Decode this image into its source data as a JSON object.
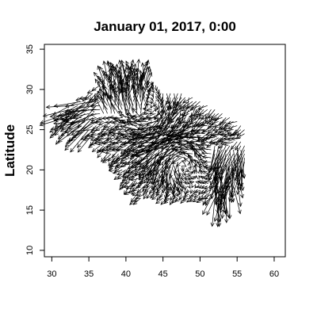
{
  "chart_data": {
    "type": "vector_field",
    "title": "January 01, 2017, 0:00",
    "xlabel": "",
    "ylabel": "Latitude",
    "xlim": [
      29,
      61.5
    ],
    "ylim": [
      9.2,
      35.6
    ],
    "x_ticks": [
      30,
      35,
      40,
      45,
      50,
      55,
      60
    ],
    "y_ticks": [
      10,
      15,
      20,
      25,
      30,
      35
    ],
    "grid": false,
    "vector_grid_spacing_deg": 0.5,
    "region_rows": [
      {
        "lat": 31.5,
        "lon_ranges": [
          [
            37.5,
            42.5
          ]
        ]
      },
      {
        "lat": 31.0,
        "lon_ranges": [
          [
            37.0,
            43.5
          ]
        ]
      },
      {
        "lat": 30.5,
        "lon_ranges": [
          [
            36.5,
            44.0
          ]
        ]
      },
      {
        "lat": 30.0,
        "lon_ranges": [
          [
            36.0,
            44.5
          ]
        ]
      },
      {
        "lat": 29.5,
        "lon_ranges": [
          [
            35.0,
            47.5
          ]
        ]
      },
      {
        "lat": 29.0,
        "lon_ranges": [
          [
            34.5,
            49.0
          ]
        ]
      },
      {
        "lat": 28.5,
        "lon_ranges": [
          [
            33.5,
            50.0
          ]
        ]
      },
      {
        "lat": 28.0,
        "lon_ranges": [
          [
            33.0,
            51.0
          ]
        ]
      },
      {
        "lat": 27.5,
        "lon_ranges": [
          [
            32.5,
            52.0
          ]
        ]
      },
      {
        "lat": 27.0,
        "lon_ranges": [
          [
            32.0,
            53.0
          ]
        ]
      },
      {
        "lat": 26.5,
        "lon_ranges": [
          [
            32.0,
            54.0
          ]
        ]
      },
      {
        "lat": 26.0,
        "lon_ranges": [
          [
            33.0,
            55.0
          ]
        ]
      },
      {
        "lat": 25.5,
        "lon_ranges": [
          [
            34.0,
            55.5
          ]
        ]
      },
      {
        "lat": 25.0,
        "lon_ranges": [
          [
            34.5,
            56.0
          ]
        ]
      },
      {
        "lat": 24.5,
        "lon_ranges": [
          [
            35.0,
            56.0
          ]
        ]
      },
      {
        "lat": 24.0,
        "lon_ranges": [
          [
            35.5,
            55.5
          ]
        ]
      },
      {
        "lat": 23.5,
        "lon_ranges": [
          [
            36.0,
            55.5
          ]
        ]
      },
      {
        "lat": 23.0,
        "lon_ranges": [
          [
            36.5,
            56.0
          ]
        ]
      },
      {
        "lat": 22.5,
        "lon_ranges": [
          [
            37.0,
            56.0
          ]
        ]
      },
      {
        "lat": 22.0,
        "lon_ranges": [
          [
            37.5,
            56.0
          ]
        ]
      },
      {
        "lat": 21.5,
        "lon_ranges": [
          [
            38.0,
            56.0
          ]
        ]
      },
      {
        "lat": 21.0,
        "lon_ranges": [
          [
            38.5,
            56.0
          ]
        ]
      },
      {
        "lat": 20.5,
        "lon_ranges": [
          [
            39.0,
            55.5
          ]
        ]
      },
      {
        "lat": 20.0,
        "lon_ranges": [
          [
            39.0,
            55.5
          ]
        ]
      },
      {
        "lat": 19.5,
        "lon_ranges": [
          [
            39.5,
            55.0
          ]
        ]
      },
      {
        "lat": 19.0,
        "lon_ranges": [
          [
            40.0,
            55.0
          ]
        ]
      },
      {
        "lat": 18.5,
        "lon_ranges": [
          [
            40.0,
            54.5
          ]
        ]
      },
      {
        "lat": 18.0,
        "lon_ranges": [
          [
            40.5,
            54.5
          ]
        ]
      },
      {
        "lat": 17.5,
        "lon_ranges": [
          [
            41.0,
            54.0
          ]
        ]
      },
      {
        "lat": 17.0,
        "lon_ranges": [
          [
            41.5,
            42.5
          ],
          [
            44.5,
            53.5
          ]
        ]
      },
      {
        "lat": 16.5,
        "lon_ranges": [
          [
            41.5,
            42.0
          ],
          [
            45.0,
            53.0
          ]
        ]
      }
    ],
    "flow_features": [
      {
        "type": "uniform",
        "u": -1.0,
        "v": -0.6,
        "weight": 1.0
      },
      {
        "type": "vortex",
        "lon": 47.5,
        "lat": 21.5,
        "strength": 4.0,
        "radius": 3.0
      },
      {
        "type": "vortex",
        "lon": 44.0,
        "lat": 27.0,
        "strength": -3.0,
        "radius": 3.5
      },
      {
        "type": "jet",
        "lon_min": 52.0,
        "lon_max": 56.5,
        "lat_min": 16.5,
        "lat_max": 23.0,
        "u": 0.4,
        "v": -2.6
      },
      {
        "type": "jet",
        "lon_min": 37.0,
        "lon_max": 42.5,
        "lat_min": 27.0,
        "lat_max": 31.5,
        "u": 0.5,
        "v": 2.4
      },
      {
        "type": "jet",
        "lon_min": 32.0,
        "lon_max": 36.0,
        "lat_min": 25.0,
        "lat_max": 28.5,
        "u": -2.0,
        "v": -1.0
      }
    ],
    "vector_length_scale_deg": 1.1,
    "line_color": "#000000"
  }
}
